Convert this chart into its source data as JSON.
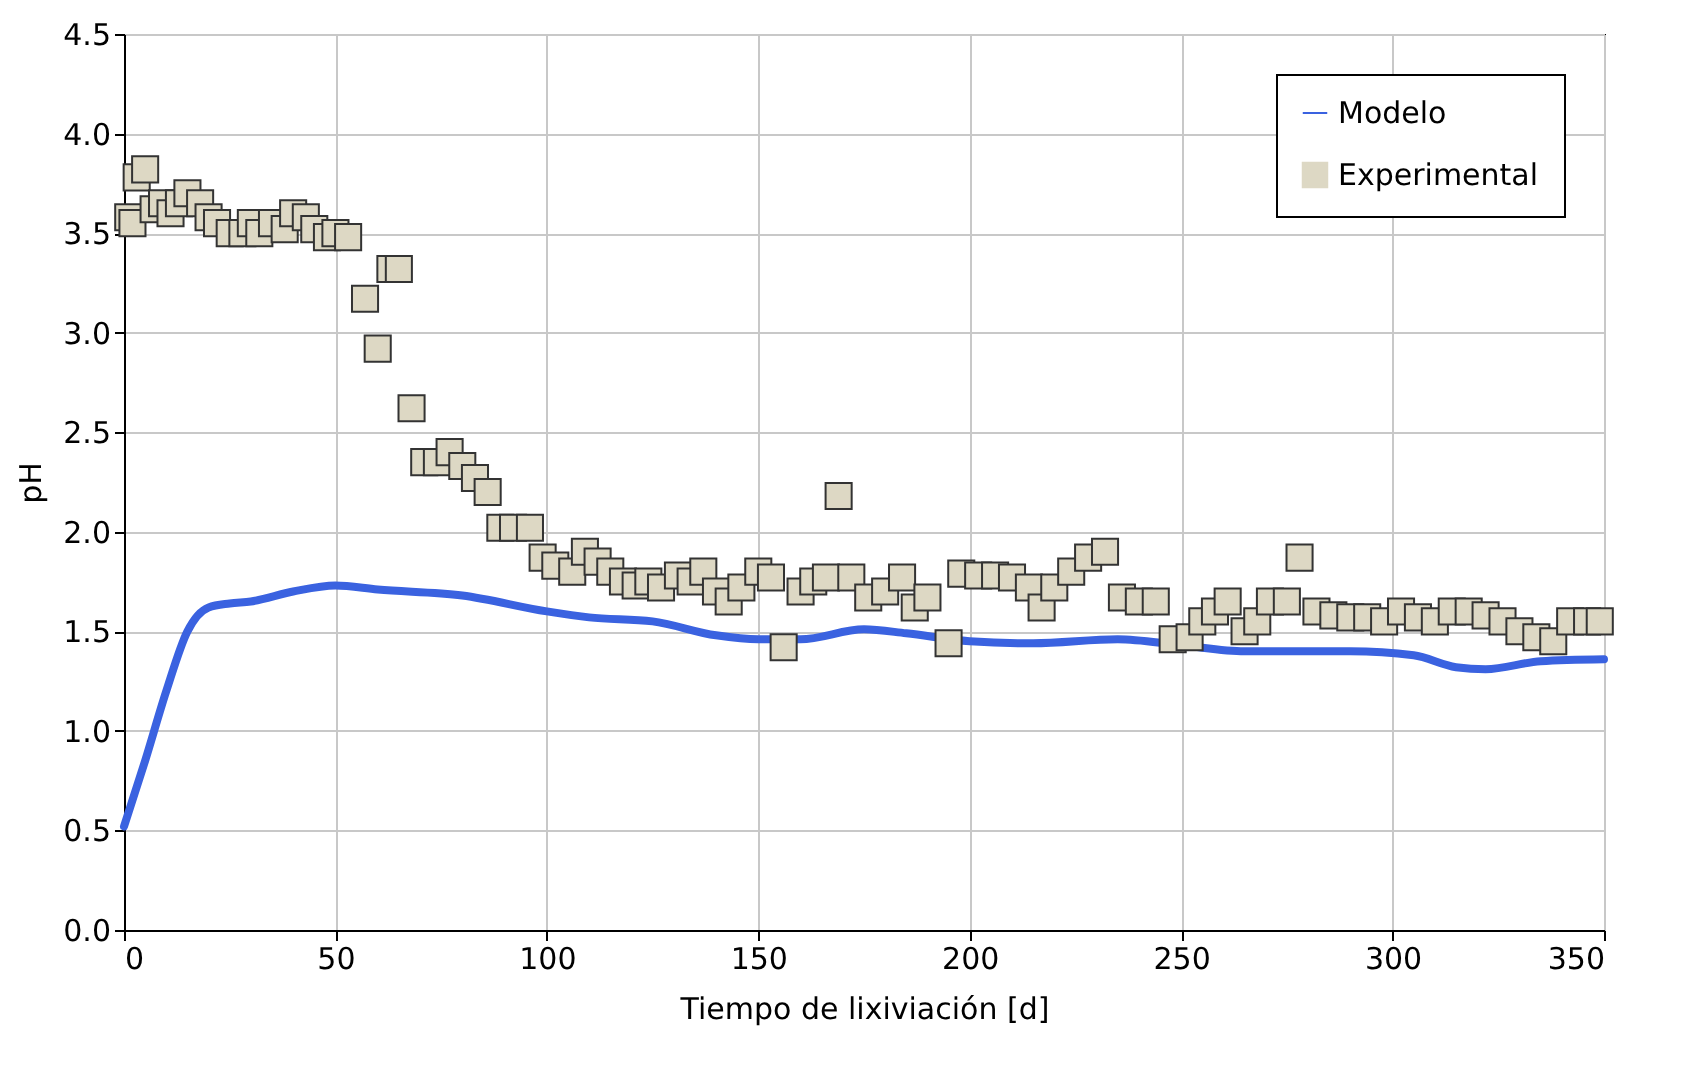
{
  "chart_data": {
    "type": "scatter",
    "xlabel": "Tiempo de lixiviación [d]",
    "ylabel": "pH",
    "xlim": [
      0,
      350
    ],
    "xticks": [
      0,
      50,
      100,
      150,
      200,
      250,
      300,
      350
    ],
    "ylim": [
      0,
      4.5
    ],
    "yticks": [
      {
        "value": 0,
        "label": "0.0"
      },
      {
        "value": 0.5,
        "label": "0.5"
      },
      {
        "value": 1,
        "label": "1.0"
      },
      {
        "value": 1.5,
        "label": "1.5"
      },
      {
        "value": 2,
        "label": "2.0"
      },
      {
        "value": 2.5,
        "label": "2.5"
      },
      {
        "value": 3,
        "label": "3.0"
      },
      {
        "value": 3.5,
        "label": "3.5"
      },
      {
        "value": 4,
        "label": "4.0"
      },
      {
        "value": 4.5,
        "label": "4.5"
      }
    ],
    "grid": true,
    "legend": "top right",
    "series": [
      {
        "name": "Modelo",
        "type": "line",
        "color": "#3a62e0",
        "marker": "none",
        "line_style": "solid",
        "x": [
          0,
          5,
          10,
          15,
          20,
          25,
          30,
          40,
          50,
          60,
          80,
          100,
          110,
          125,
          140,
          150,
          160,
          175,
          185,
          200,
          215,
          235,
          250,
          265,
          290,
          305,
          315,
          322,
          335,
          350
        ],
        "values": [
          0.52,
          0.85,
          1.2,
          1.5,
          1.62,
          1.64,
          1.65,
          1.7,
          1.73,
          1.71,
          1.68,
          1.6,
          1.57,
          1.55,
          1.48,
          1.46,
          1.46,
          1.51,
          1.49,
          1.45,
          1.44,
          1.46,
          1.43,
          1.4,
          1.4,
          1.38,
          1.32,
          1.31,
          1.35,
          1.36
        ]
      },
      {
        "name": "Experimental",
        "color": "#ddd8c4",
        "marker": "square",
        "x": [
          1,
          2,
          3,
          5,
          7,
          9,
          11,
          13,
          15,
          18,
          20,
          22,
          25,
          28,
          30,
          32,
          35,
          38,
          40,
          43,
          45,
          48,
          50,
          53,
          57,
          60,
          63,
          65,
          68,
          71,
          74,
          77,
          80,
          83,
          86,
          89,
          92,
          96,
          99,
          102,
          106,
          109,
          112,
          115,
          118,
          121,
          124,
          127,
          131,
          134,
          137,
          140,
          143,
          146,
          150,
          153,
          156,
          160,
          163,
          166,
          169,
          172,
          176,
          180,
          184,
          187,
          190,
          195,
          198,
          202,
          206,
          210,
          214,
          217,
          220,
          224,
          228,
          232,
          236,
          240,
          244,
          248,
          252,
          255,
          258,
          261,
          265,
          268,
          271,
          275,
          278,
          282,
          286,
          290,
          294,
          298,
          302,
          306,
          310,
          314,
          318,
          322,
          326,
          330,
          334,
          338,
          342,
          346,
          349
        ],
        "values": [
          3.58,
          3.55,
          3.78,
          3.82,
          3.62,
          3.65,
          3.6,
          3.65,
          3.7,
          3.65,
          3.58,
          3.55,
          3.5,
          3.5,
          3.55,
          3.5,
          3.55,
          3.52,
          3.6,
          3.58,
          3.52,
          3.48,
          3.5,
          3.48,
          3.17,
          2.92,
          3.32,
          3.32,
          2.62,
          2.35,
          2.35,
          2.4,
          2.33,
          2.27,
          2.2,
          2.02,
          2.02,
          2.02,
          1.87,
          1.83,
          1.8,
          1.9,
          1.85,
          1.8,
          1.75,
          1.73,
          1.75,
          1.72,
          1.78,
          1.75,
          1.8,
          1.7,
          1.65,
          1.72,
          1.8,
          1.77,
          1.42,
          1.7,
          1.75,
          1.77,
          2.18,
          1.77,
          1.67,
          1.7,
          1.77,
          1.62,
          1.67,
          1.44,
          1.79,
          1.78,
          1.78,
          1.77,
          1.72,
          1.62,
          1.72,
          1.8,
          1.87,
          1.9,
          1.67,
          1.65,
          1.65,
          1.46,
          1.47,
          1.55,
          1.6,
          1.65,
          1.5,
          1.55,
          1.65,
          1.65,
          1.87,
          1.6,
          1.58,
          1.57,
          1.57,
          1.55,
          1.6,
          1.57,
          1.55,
          1.6,
          1.6,
          1.58,
          1.55,
          1.5,
          1.47,
          1.45,
          1.55,
          1.55,
          1.55
        ]
      }
    ]
  }
}
